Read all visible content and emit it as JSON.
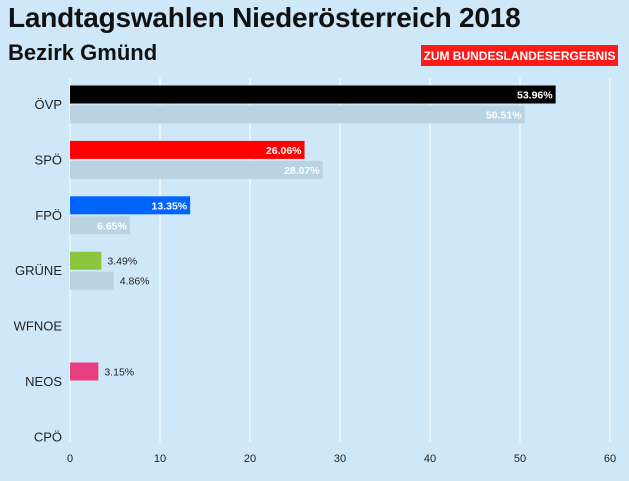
{
  "header": {
    "title": "Landtagswahlen Niederösterreich 2018",
    "subtitle": "Bezirk Gmünd",
    "link_label": "ZUM BUNDESLANDESERGEBNIS"
  },
  "colors": {
    "background": "#cfe8f9",
    "link_button": "#ff1a1a",
    "previous_bar": "#b9d3e3",
    "gridline": "#ffffff"
  },
  "chart_data": {
    "type": "bar",
    "orientation": "horizontal",
    "categories": [
      "ÖVP",
      "SPÖ",
      "FPÖ",
      "GRÜNE",
      "WFNOE",
      "NEOS",
      "CPÖ"
    ],
    "series": [
      {
        "values": [
          53.96,
          26.06,
          13.35,
          3.49,
          null,
          3.15,
          null
        ],
        "labels": [
          "53.96%",
          "26.06%",
          "13.35%",
          "3.49%",
          "",
          "3.15%",
          ""
        ],
        "colors": [
          "#000000",
          "#ff0000",
          "#0064ff",
          "#8cc63f",
          "#999999",
          "#e8407f",
          "#999999"
        ]
      },
      {
        "values": [
          50.51,
          28.07,
          6.65,
          4.86,
          null,
          null,
          null
        ],
        "labels": [
          "50.51%",
          "28.07%",
          "6.65%",
          "4.86%",
          "",
          "",
          ""
        ],
        "color": "#b9d3e3"
      }
    ],
    "xlim": [
      0,
      60
    ],
    "xticks": [
      "0",
      "10",
      "20",
      "30",
      "40",
      "50",
      "60"
    ],
    "grid": true
  }
}
